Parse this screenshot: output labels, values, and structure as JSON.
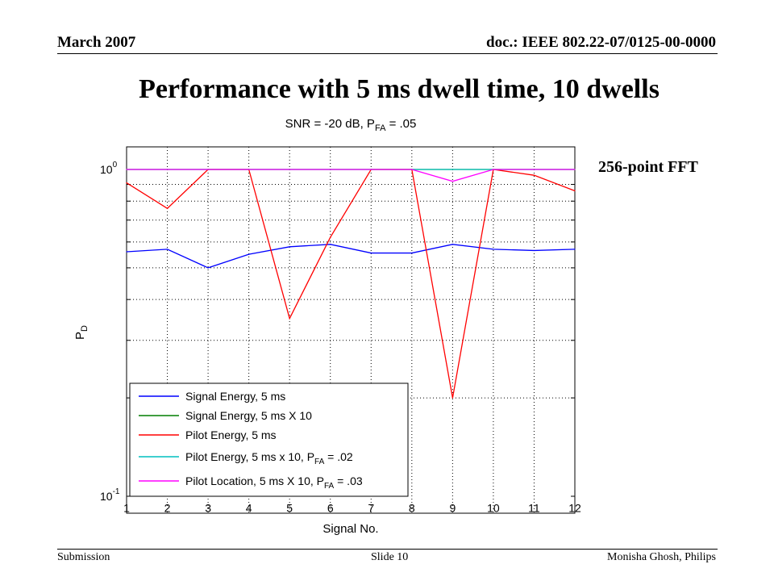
{
  "header": {
    "date": "March 2007",
    "doc_id": "doc.: IEEE 802.22-07/0125-00-0000"
  },
  "slide_title": "Performance with 5 ms dwell time, 10 dwells",
  "side_note": "256-point FFT",
  "footer": {
    "left": "Submission",
    "center": "Slide 10",
    "right": "Monisha Ghosh, Philips"
  },
  "chart_data": {
    "type": "line",
    "title": "SNR = -20 dB, P_FA = .05",
    "title_parts": {
      "pre": "SNR = -20 dB, P",
      "sub": "FA",
      "post": " = .05"
    },
    "xlabel": "Signal No.",
    "ylabel": {
      "base": "P",
      "sub": "D"
    },
    "x": [
      1,
      2,
      3,
      4,
      5,
      6,
      7,
      8,
      9,
      10,
      11,
      12
    ],
    "xlim": [
      1,
      12
    ],
    "ylim": [
      0.1,
      1.0
    ],
    "yscale": "log",
    "ytick_labels": [
      {
        "value": 1.0,
        "base": "10",
        "exp": "0"
      },
      {
        "value": 0.1,
        "base": "10",
        "exp": "-1"
      }
    ],
    "grid": true,
    "legend_position": "lower-left",
    "series": [
      {
        "name": "Signal Energy, 5 ms",
        "label": {
          "pre": "Signal Energy, 5 ms"
        },
        "color": "#0000ff",
        "values": [
          0.56,
          0.57,
          0.5,
          0.55,
          0.58,
          0.59,
          0.555,
          0.555,
          0.59,
          0.57,
          0.565,
          0.57
        ]
      },
      {
        "name": "Signal Energy, 5 ms X 10",
        "label": {
          "pre": "Signal Energy, 5 ms X 10"
        },
        "color": "#007f00",
        "values": [
          1.0,
          1.0,
          1.0,
          1.0,
          1.0,
          1.0,
          1.0,
          1.0,
          1.0,
          1.0,
          1.0,
          1.0
        ]
      },
      {
        "name": "Pilot Energy, 5 ms",
        "label": {
          "pre": "Pilot Energy, 5 ms"
        },
        "color": "#ff0000",
        "values": [
          0.91,
          0.76,
          1.0,
          1.0,
          0.35,
          0.62,
          1.0,
          1.0,
          0.2,
          1.0,
          0.96,
          0.86
        ]
      },
      {
        "name": "Pilot Energy, 5 ms x 10, P_FA = .02",
        "label": {
          "pre": "Pilot Energy, 5 ms x 10, P",
          "sub": "FA",
          "post": " = .02"
        },
        "color": "#00bfbf",
        "values": [
          1.0,
          1.0,
          1.0,
          1.0,
          1.0,
          1.0,
          1.0,
          1.0,
          1.0,
          1.0,
          1.0,
          1.0
        ]
      },
      {
        "name": "Pilot Location, 5 ms X 10, P_FA = .03",
        "label": {
          "pre": "Pilot Location, 5 ms X 10, P",
          "sub": "FA",
          "post": " = .03"
        },
        "color": "#ff00ff",
        "values": [
          1.0,
          1.0,
          1.0,
          1.0,
          1.0,
          1.0,
          1.0,
          1.0,
          0.92,
          1.0,
          1.0,
          1.0
        ]
      }
    ]
  }
}
